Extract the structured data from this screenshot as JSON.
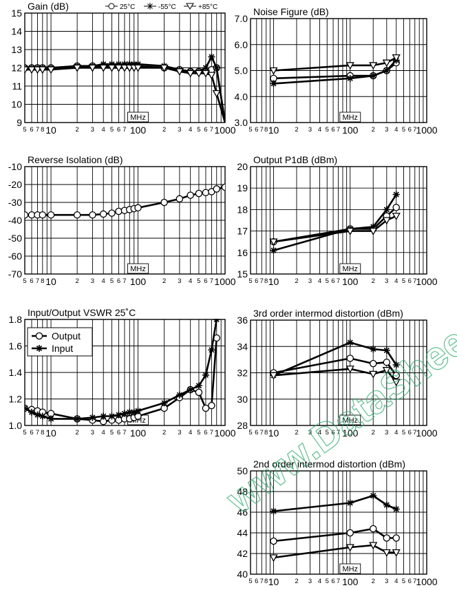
{
  "watermark": "www.DataSheet4U.com",
  "charts": [
    {
      "type": "line",
      "title": "Gain (dB)",
      "xscale": "log",
      "xlim": [
        5,
        1000
      ],
      "ylim": [
        9,
        15
      ],
      "yticks": [
        9,
        10,
        11,
        12,
        13,
        14,
        15
      ],
      "xtick_labels": [
        "5",
        "6",
        "7",
        "8",
        "10",
        "2",
        "3",
        "4",
        "5",
        "6",
        "7",
        "100",
        "2",
        "3",
        "4",
        "5",
        "6",
        "7",
        "1000"
      ],
      "unit_label": "MHz",
      "legend": {
        "position": "top",
        "entries": [
          "25°C",
          "-55°C",
          "+85°C"
        ]
      },
      "series": [
        {
          "name": "25°C",
          "marker": "circle",
          "x": [
            5,
            6,
            7,
            8,
            10,
            20,
            30,
            40,
            50,
            60,
            70,
            80,
            90,
            100,
            200,
            300,
            400,
            500,
            600,
            700,
            800,
            1000
          ],
          "y": [
            12.0,
            12.0,
            12.0,
            12.0,
            12.0,
            12.1,
            12.1,
            12.1,
            12.1,
            12.1,
            12.1,
            12.1,
            12.1,
            12.1,
            12.0,
            11.9,
            11.8,
            11.8,
            11.8,
            11.9,
            12.0,
            9.0
          ]
        },
        {
          "name": "-55°C",
          "marker": "asterisk",
          "x": [
            5,
            6,
            7,
            8,
            10,
            20,
            30,
            40,
            50,
            60,
            70,
            80,
            90,
            100,
            200,
            300,
            400,
            500,
            600,
            700,
            800,
            1000
          ],
          "y": [
            12.0,
            12.0,
            12.0,
            12.0,
            12.0,
            12.1,
            12.1,
            12.2,
            12.2,
            12.2,
            12.2,
            12.2,
            12.2,
            12.2,
            12.1,
            11.9,
            11.8,
            11.8,
            12.0,
            12.6,
            12.0,
            9.0
          ]
        },
        {
          "name": "+85°C",
          "marker": "triangle",
          "x": [
            5,
            6,
            7,
            8,
            10,
            20,
            30,
            40,
            50,
            60,
            70,
            80,
            90,
            100,
            200,
            300,
            400,
            500,
            600,
            700,
            800,
            1000
          ],
          "y": [
            11.9,
            11.9,
            11.9,
            11.9,
            11.9,
            12.0,
            12.0,
            12.0,
            12.0,
            12.0,
            12.0,
            12.0,
            12.0,
            12.0,
            12.0,
            11.8,
            11.7,
            11.7,
            11.7,
            11.6,
            10.6,
            9.0
          ]
        }
      ]
    },
    {
      "type": "line",
      "title": "Noise Figure (dB)",
      "xscale": "log",
      "xlim": [
        5,
        1000
      ],
      "ylim": [
        3.0,
        7.0
      ],
      "yticks": [
        3.0,
        4.0,
        5.0,
        6.0,
        7.0
      ],
      "ytick_labels": [
        "3.0",
        "4.0",
        "5.0",
        "6.0",
        "7.0"
      ],
      "xtick_labels": [
        "5",
        "6",
        "7",
        "8",
        "10",
        "2",
        "3",
        "4",
        "5",
        "6",
        "7",
        "100",
        "2",
        "3",
        "4",
        "5",
        "6",
        "7",
        "1000"
      ],
      "unit_label": "MHz",
      "series": [
        {
          "name": "25°C",
          "marker": "circle",
          "x": [
            10,
            100,
            200,
            300,
            400
          ],
          "y": [
            4.7,
            4.8,
            4.8,
            5.0,
            5.3
          ]
        },
        {
          "name": "-55°C",
          "marker": "asterisk",
          "x": [
            10,
            100,
            200,
            300,
            400
          ],
          "y": [
            4.5,
            4.7,
            4.8,
            5.0,
            5.4
          ]
        },
        {
          "name": "+85°C",
          "marker": "triangle",
          "x": [
            10,
            100,
            200,
            300,
            400
          ],
          "y": [
            5.0,
            5.2,
            5.2,
            5.3,
            5.5
          ]
        }
      ]
    },
    {
      "type": "line",
      "title": "Reverse Isolation (dB)",
      "xscale": "log",
      "xlim": [
        5,
        1000
      ],
      "ylim": [
        -70,
        -10
      ],
      "yticks": [
        -70,
        -60,
        -50,
        -40,
        -30,
        -20,
        -10
      ],
      "xtick_labels": [
        "5",
        "6",
        "7",
        "8",
        "10",
        "2",
        "3",
        "4",
        "5",
        "6",
        "7",
        "100",
        "2",
        "3",
        "4",
        "5",
        "6",
        "7",
        "1000"
      ],
      "unit_label": "MHz",
      "series": [
        {
          "name": "25°C",
          "marker": "circle",
          "x": [
            5,
            6,
            7,
            8,
            10,
            20,
            30,
            40,
            50,
            60,
            70,
            80,
            90,
            100,
            200,
            300,
            400,
            500,
            600,
            700,
            800,
            1000
          ],
          "y": [
            -37,
            -37,
            -37,
            -37,
            -37,
            -37,
            -37,
            -36.5,
            -36,
            -35,
            -34.5,
            -34,
            -33.5,
            -33,
            -30,
            -28,
            -26,
            -25,
            -24.5,
            -24,
            -22.5,
            -21.5
          ]
        }
      ]
    },
    {
      "type": "line",
      "title": "Output P1dB (dBm)",
      "xscale": "log",
      "xlim": [
        5,
        1000
      ],
      "ylim": [
        15,
        20
      ],
      "yticks": [
        15,
        16,
        17,
        18,
        19,
        20
      ],
      "xtick_labels": [
        "5",
        "6",
        "7",
        "8",
        "10",
        "2",
        "3",
        "4",
        "5",
        "6",
        "7",
        "100",
        "2",
        "3",
        "4",
        "5",
        "6",
        "7",
        "1000"
      ],
      "unit_label": "MHz",
      "series": [
        {
          "name": "25°C",
          "marker": "circle",
          "x": [
            10,
            100,
            200,
            300,
            400
          ],
          "y": [
            16.5,
            17.1,
            17.1,
            17.7,
            18.1
          ]
        },
        {
          "name": "-55°C",
          "marker": "asterisk",
          "x": [
            10,
            100,
            200,
            300,
            400
          ],
          "y": [
            16.1,
            17.1,
            17.2,
            18.0,
            18.7
          ]
        },
        {
          "name": "+85°C",
          "marker": "triangle",
          "x": [
            10,
            100,
            200,
            300,
            400
          ],
          "y": [
            16.5,
            17.0,
            17.0,
            17.5,
            17.7
          ]
        }
      ]
    },
    {
      "type": "line",
      "title": "Input/Output VSWR 25˚C",
      "xscale": "log",
      "xlim": [
        5,
        1000
      ],
      "ylim": [
        1.0,
        1.8
      ],
      "yticks": [
        1.0,
        1.2,
        1.4,
        1.6,
        1.8
      ],
      "ytick_labels": [
        "1.0",
        "1.2",
        "1.4",
        "1.6",
        "1.8"
      ],
      "xtick_labels": [
        "5",
        "6",
        "7",
        "8",
        "10",
        "2",
        "3",
        "4",
        "5",
        "6",
        "7",
        "100",
        "2",
        "3",
        "4",
        "5",
        "6",
        "7",
        "1000"
      ],
      "unit_label": "MHz",
      "legend": {
        "position": "top-left",
        "entries": [
          "Output",
          "Input"
        ]
      },
      "series": [
        {
          "name": "Output",
          "marker": "circle",
          "x": [
            5,
            6,
            7,
            8,
            10,
            20,
            30,
            40,
            50,
            60,
            70,
            80,
            90,
            100,
            200,
            300,
            400,
            500,
            600,
            700,
            800
          ],
          "y": [
            1.13,
            1.12,
            1.11,
            1.1,
            1.09,
            1.05,
            1.04,
            1.03,
            1.04,
            1.04,
            1.05,
            1.05,
            1.06,
            1.07,
            1.13,
            1.21,
            1.27,
            1.25,
            1.13,
            1.15,
            1.66
          ]
        },
        {
          "name": "Input",
          "marker": "asterisk",
          "x": [
            5,
            6,
            7,
            8,
            10,
            20,
            30,
            40,
            50,
            60,
            70,
            80,
            90,
            100,
            200,
            300,
            400,
            500,
            600,
            700,
            800
          ],
          "y": [
            1.13,
            1.1,
            1.08,
            1.07,
            1.05,
            1.05,
            1.06,
            1.07,
            1.07,
            1.08,
            1.09,
            1.1,
            1.1,
            1.11,
            1.17,
            1.23,
            1.27,
            1.3,
            1.38,
            1.57,
            1.8
          ]
        }
      ]
    },
    {
      "type": "line",
      "title": "3rd order intermod distortion (dBm)",
      "xscale": "log",
      "xlim": [
        5,
        1000
      ],
      "ylim": [
        28,
        36
      ],
      "yticks": [
        28,
        30,
        32,
        34,
        36
      ],
      "xtick_labels": [
        "5",
        "6",
        "7",
        "8",
        "10",
        "2",
        "3",
        "4",
        "5",
        "6",
        "7",
        "100",
        "2",
        "3",
        "4",
        "5",
        "6",
        "7",
        "1000"
      ],
      "unit_label": "MHz",
      "series": [
        {
          "name": "25°C",
          "marker": "circle",
          "x": [
            10,
            100,
            200,
            300,
            400
          ],
          "y": [
            32.0,
            33.1,
            32.7,
            32.8,
            31.8
          ]
        },
        {
          "name": "-55°C",
          "marker": "asterisk",
          "x": [
            10,
            100,
            200,
            300,
            400
          ],
          "y": [
            31.8,
            34.3,
            33.8,
            33.7,
            32.6
          ]
        },
        {
          "name": "+85°C",
          "marker": "triangle",
          "x": [
            10,
            100,
            200,
            300,
            400
          ],
          "y": [
            31.8,
            32.3,
            31.9,
            32.2,
            31.3
          ]
        }
      ]
    },
    {
      "type": "line",
      "title": "2nd order intermod distortion (dBm)",
      "xscale": "log",
      "xlim": [
        5,
        1000
      ],
      "ylim": [
        40,
        50
      ],
      "yticks": [
        40,
        42,
        44,
        46,
        48,
        50
      ],
      "xtick_labels": [
        "5",
        "6",
        "7",
        "8",
        "10",
        "2",
        "3",
        "4",
        "5",
        "6",
        "7",
        "100",
        "2",
        "3",
        "4",
        "5",
        "6",
        "7",
        "1000"
      ],
      "unit_label": "MHz",
      "series": [
        {
          "name": "25°C",
          "marker": "circle",
          "x": [
            10,
            100,
            200,
            300,
            400
          ],
          "y": [
            43.2,
            44.0,
            44.4,
            43.5,
            43.5
          ]
        },
        {
          "name": "-55°C",
          "marker": "asterisk",
          "x": [
            10,
            100,
            200,
            300,
            400
          ],
          "y": [
            46.1,
            46.9,
            47.6,
            46.7,
            46.3
          ]
        },
        {
          "name": "+85°C",
          "marker": "triangle",
          "x": [
            10,
            100,
            200,
            300,
            400
          ],
          "y": [
            41.6,
            42.6,
            42.8,
            42.1,
            42.1
          ]
        }
      ]
    }
  ]
}
